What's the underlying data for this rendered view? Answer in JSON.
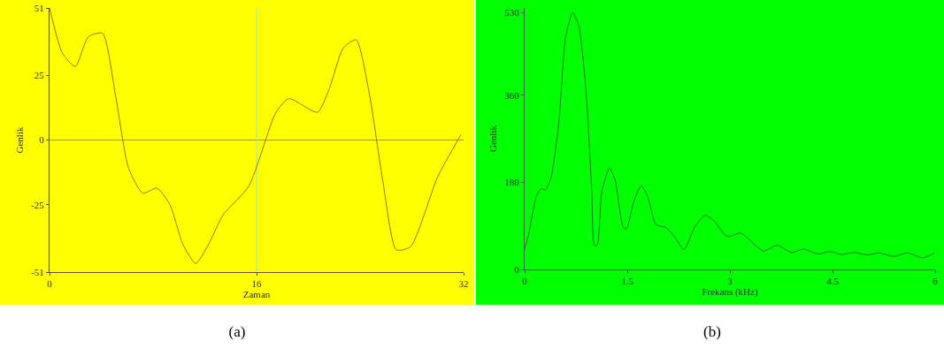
{
  "chart_data": [
    {
      "type": "line",
      "xlabel": "Zaman",
      "ylabel": "Genlik",
      "annotations": [
        "(a)"
      ],
      "x": [
        0,
        1,
        2,
        3,
        4.1,
        5.1,
        6.1,
        7.2,
        8.3,
        9.3,
        10.3,
        11.3,
        12.3,
        13.4,
        15.4,
        17.5,
        18.5,
        20.7,
        21.6,
        22.7,
        23.7,
        24.7,
        25.8,
        26.8,
        27.9,
        30,
        31.8
      ],
      "series": [
        {
          "color": "#8a7d10",
          "values": [
            51,
            33.5,
            28.4,
            39.9,
            41.2,
            17.2,
            -10.7,
            -20.5,
            -18.6,
            -24.9,
            -40.2,
            -47.7,
            -40.2,
            -29,
            -17.8,
            10.7,
            16,
            10.7,
            19.5,
            35.5,
            38.7,
            18.3,
            -17.2,
            -42.4,
            -41.2,
            -14.2,
            2.1
          ]
        }
      ],
      "xlim": [
        0,
        32
      ],
      "xticks": [
        0,
        16,
        32
      ],
      "ylim": [
        -51,
        51
      ],
      "yticks": [
        -51,
        -25,
        0,
        25,
        51
      ],
      "ref_lines": [
        {
          "axis": "y",
          "value": 0,
          "color": "#a09a40"
        },
        {
          "axis": "x",
          "value": 16,
          "color": "#9fe0c8"
        }
      ]
    },
    {
      "type": "line",
      "xlabel": "Frekans (kHz)",
      "ylabel": "Genlik",
      "annotations": [
        "(b)"
      ],
      "x": [
        0,
        0.06,
        0.17,
        0.24,
        0.3,
        0.38,
        0.5,
        0.6,
        0.7,
        0.79,
        0.9,
        0.98,
        1.02,
        1.06,
        1.13,
        1.24,
        1.32,
        1.44,
        1.49,
        1.59,
        1.7,
        1.8,
        1.92,
        2.06,
        2.19,
        2.33,
        2.49,
        2.64,
        2.77,
        2.96,
        3.16,
        3.49,
        3.69,
        3.9,
        4.07,
        4.29,
        4.46,
        4.63,
        4.82,
        5.01,
        5.18,
        5.39,
        5.6,
        5.82,
        5.99
      ],
      "series": [
        {
          "color": "#1f7a1f",
          "values": [
            41,
            74,
            150,
            167,
            164,
            186,
            304,
            481,
            530,
            504,
            363,
            163,
            50,
            50,
            163,
            209,
            186,
            88,
            84,
            138,
            173,
            150,
            92,
            87,
            68,
            41,
            89,
            112,
            100,
            68,
            75,
            38,
            50,
            35,
            42,
            32,
            37,
            31,
            35,
            30,
            34,
            27,
            34,
            24,
            34
          ]
        }
      ],
      "xlim": [
        0,
        6
      ],
      "xticks": [
        0,
        1.5,
        3,
        4.5,
        6
      ],
      "ylim": [
        0,
        540
      ],
      "yticks": [
        0,
        180,
        360,
        530
      ]
    }
  ]
}
